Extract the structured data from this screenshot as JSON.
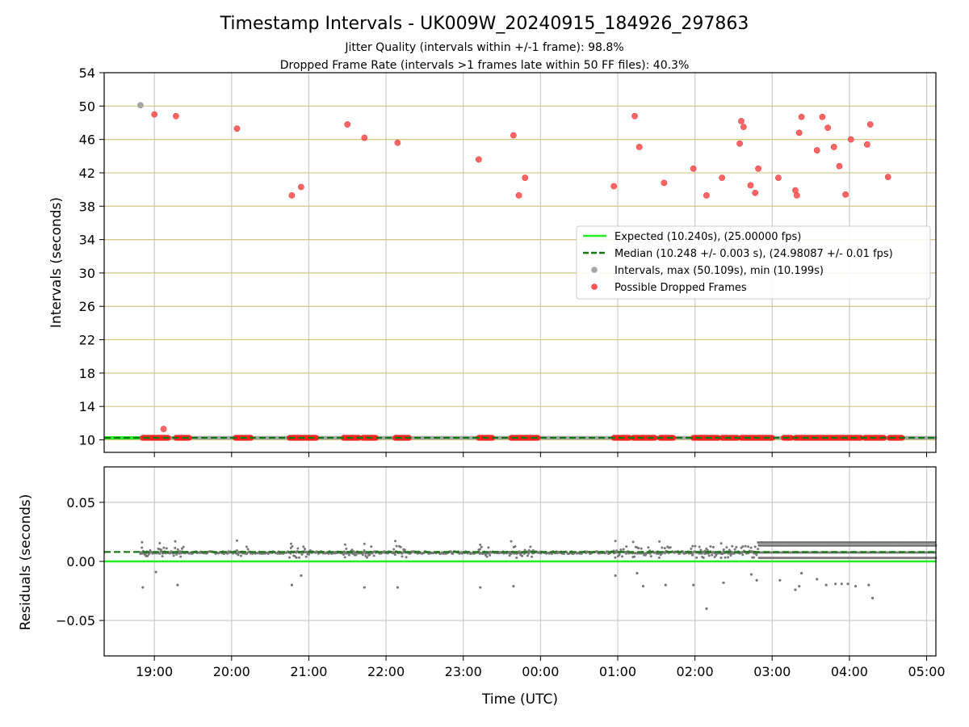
{
  "chart_data": {
    "type": "scatter",
    "title": "Timestamp Intervals - UK009W_20240915_184926_297863",
    "subtitle_lines": [
      "Jitter Quality (intervals within +/-1 frame): 98.8%",
      "Dropped Frame Rate (intervals >1 frames late within 50 FF files): 40.3%"
    ],
    "xlabel": "Time (UTC)",
    "x_ticks": [
      "19:00",
      "20:00",
      "21:00",
      "22:00",
      "23:00",
      "00:00",
      "01:00",
      "02:00",
      "03:00",
      "04:00",
      "05:00"
    ],
    "x_range_hours": [
      18.35,
      29.12
    ],
    "colors": {
      "expected": "#22ee22",
      "median": "#117711",
      "intervals": "#a6a6a6",
      "dropped": "#ff2222",
      "residual_points": "#777777",
      "hgrid_top": "#d8c586",
      "grid": "#cccccc"
    },
    "top_panel": {
      "ylabel": "Intervals (seconds)",
      "ylim": [
        8.5,
        54
      ],
      "y_ticks": [
        "10",
        "14",
        "18",
        "22",
        "26",
        "30",
        "34",
        "38",
        "42",
        "46",
        "50",
        "54"
      ],
      "expected": 10.24,
      "median": 10.248,
      "legend": {
        "placement": "center-right",
        "entries": [
          "Expected (10.240s), (25.00000 fps)",
          "Median (10.248 +/- 0.003 s), (24.98087 +/- 0.01 fps)",
          "Intervals, max (50.109s), min (10.199s)",
          "Possible Dropped Frames"
        ]
      },
      "interval_outliers": [
        {
          "t": 18.82,
          "v": 50.1
        }
      ],
      "dropped_frames": [
        {
          "t": 19.0,
          "v": 49.0
        },
        {
          "t": 19.28,
          "v": 48.8
        },
        {
          "t": 19.12,
          "v": 11.3
        },
        {
          "t": 20.07,
          "v": 47.3
        },
        {
          "t": 20.78,
          "v": 39.3
        },
        {
          "t": 20.9,
          "v": 40.3
        },
        {
          "t": 21.5,
          "v": 47.8
        },
        {
          "t": 21.72,
          "v": 46.2
        },
        {
          "t": 22.15,
          "v": 45.6
        },
        {
          "t": 23.2,
          "v": 43.6
        },
        {
          "t": 23.65,
          "v": 46.5
        },
        {
          "t": 23.72,
          "v": 39.3
        },
        {
          "t": 23.8,
          "v": 41.4
        },
        {
          "t": 24.95,
          "v": 40.4
        },
        {
          "t": 25.22,
          "v": 48.8
        },
        {
          "t": 25.28,
          "v": 45.1
        },
        {
          "t": 25.6,
          "v": 40.8
        },
        {
          "t": 25.98,
          "v": 42.5
        },
        {
          "t": 26.15,
          "v": 39.3
        },
        {
          "t": 26.35,
          "v": 41.4
        },
        {
          "t": 26.58,
          "v": 45.5
        },
        {
          "t": 26.6,
          "v": 48.2
        },
        {
          "t": 26.63,
          "v": 47.5
        },
        {
          "t": 26.72,
          "v": 40.5
        },
        {
          "t": 26.78,
          "v": 39.6
        },
        {
          "t": 26.82,
          "v": 42.5
        },
        {
          "t": 27.08,
          "v": 41.4
        },
        {
          "t": 27.3,
          "v": 39.9
        },
        {
          "t": 27.32,
          "v": 39.3
        },
        {
          "t": 27.35,
          "v": 46.8
        },
        {
          "t": 27.38,
          "v": 48.7
        },
        {
          "t": 27.58,
          "v": 44.7
        },
        {
          "t": 27.65,
          "v": 48.7
        },
        {
          "t": 27.72,
          "v": 47.4
        },
        {
          "t": 27.8,
          "v": 45.1
        },
        {
          "t": 27.87,
          "v": 42.8
        },
        {
          "t": 27.95,
          "v": 39.4
        },
        {
          "t": 28.02,
          "v": 46.0
        },
        {
          "t": 28.23,
          "v": 45.4
        },
        {
          "t": 28.27,
          "v": 47.8
        },
        {
          "t": 28.5,
          "v": 41.5
        }
      ],
      "dropped_baseline_segments": [
        [
          18.85,
          19.18
        ],
        [
          19.28,
          19.45
        ],
        [
          20.05,
          20.25
        ],
        [
          20.75,
          21.1
        ],
        [
          21.45,
          21.65
        ],
        [
          21.7,
          21.87
        ],
        [
          22.12,
          22.3
        ],
        [
          23.2,
          23.38
        ],
        [
          23.62,
          23.97
        ],
        [
          24.95,
          25.15
        ],
        [
          25.2,
          25.48
        ],
        [
          25.55,
          25.72
        ],
        [
          25.98,
          26.3
        ],
        [
          26.35,
          26.55
        ],
        [
          26.6,
          27.0
        ],
        [
          27.15,
          27.25
        ],
        [
          27.3,
          28.15
        ],
        [
          28.2,
          28.45
        ],
        [
          28.52,
          28.68
        ]
      ]
    },
    "bottom_panel": {
      "ylabel": "Residuals (seconds)",
      "ylim": [
        -0.08,
        0.08
      ],
      "y_ticks": [
        "0.05",
        "0.00",
        "−0.05"
      ],
      "expected": 0.0,
      "median": 0.008,
      "outliers": [
        {
          "t": 18.85,
          "v": -0.022
        },
        {
          "t": 19.02,
          "v": -0.009
        },
        {
          "t": 19.3,
          "v": -0.02
        },
        {
          "t": 20.78,
          "v": -0.02
        },
        {
          "t": 20.9,
          "v": -0.012
        },
        {
          "t": 21.72,
          "v": -0.022
        },
        {
          "t": 22.15,
          "v": -0.022
        },
        {
          "t": 23.22,
          "v": -0.022
        },
        {
          "t": 23.65,
          "v": -0.021
        },
        {
          "t": 24.97,
          "v": -0.012
        },
        {
          "t": 25.25,
          "v": -0.01
        },
        {
          "t": 25.33,
          "v": -0.021
        },
        {
          "t": 25.62,
          "v": -0.02
        },
        {
          "t": 25.98,
          "v": -0.02
        },
        {
          "t": 26.15,
          "v": -0.04
        },
        {
          "t": 26.37,
          "v": -0.018
        },
        {
          "t": 26.73,
          "v": -0.011
        },
        {
          "t": 26.8,
          "v": -0.016
        },
        {
          "t": 27.1,
          "v": -0.016
        },
        {
          "t": 27.3,
          "v": -0.024
        },
        {
          "t": 27.35,
          "v": -0.021
        },
        {
          "t": 27.38,
          "v": -0.01
        },
        {
          "t": 27.58,
          "v": -0.015
        },
        {
          "t": 27.7,
          "v": -0.02
        },
        {
          "t": 27.82,
          "v": -0.019
        },
        {
          "t": 27.9,
          "v": -0.019
        },
        {
          "t": 27.98,
          "v": -0.019
        },
        {
          "t": 28.08,
          "v": -0.021
        },
        {
          "t": 28.25,
          "v": -0.02
        },
        {
          "t": 28.3,
          "v": -0.031
        }
      ],
      "clusters": [
        [
          18.82,
          18.95
        ],
        [
          19.05,
          19.18
        ],
        [
          19.25,
          19.4
        ],
        [
          20.05,
          20.22
        ],
        [
          20.75,
          21.05
        ],
        [
          21.45,
          21.62
        ],
        [
          21.7,
          21.85
        ],
        [
          22.1,
          22.28
        ],
        [
          23.2,
          23.35
        ],
        [
          23.6,
          23.92
        ],
        [
          24.95,
          25.12
        ],
        [
          25.18,
          25.45
        ],
        [
          25.52,
          25.7
        ],
        [
          25.95,
          26.28
        ],
        [
          26.32,
          26.55
        ],
        [
          26.6,
          26.82
        ]
      ],
      "dense_band": [
        26.82,
        29.12
      ]
    }
  }
}
